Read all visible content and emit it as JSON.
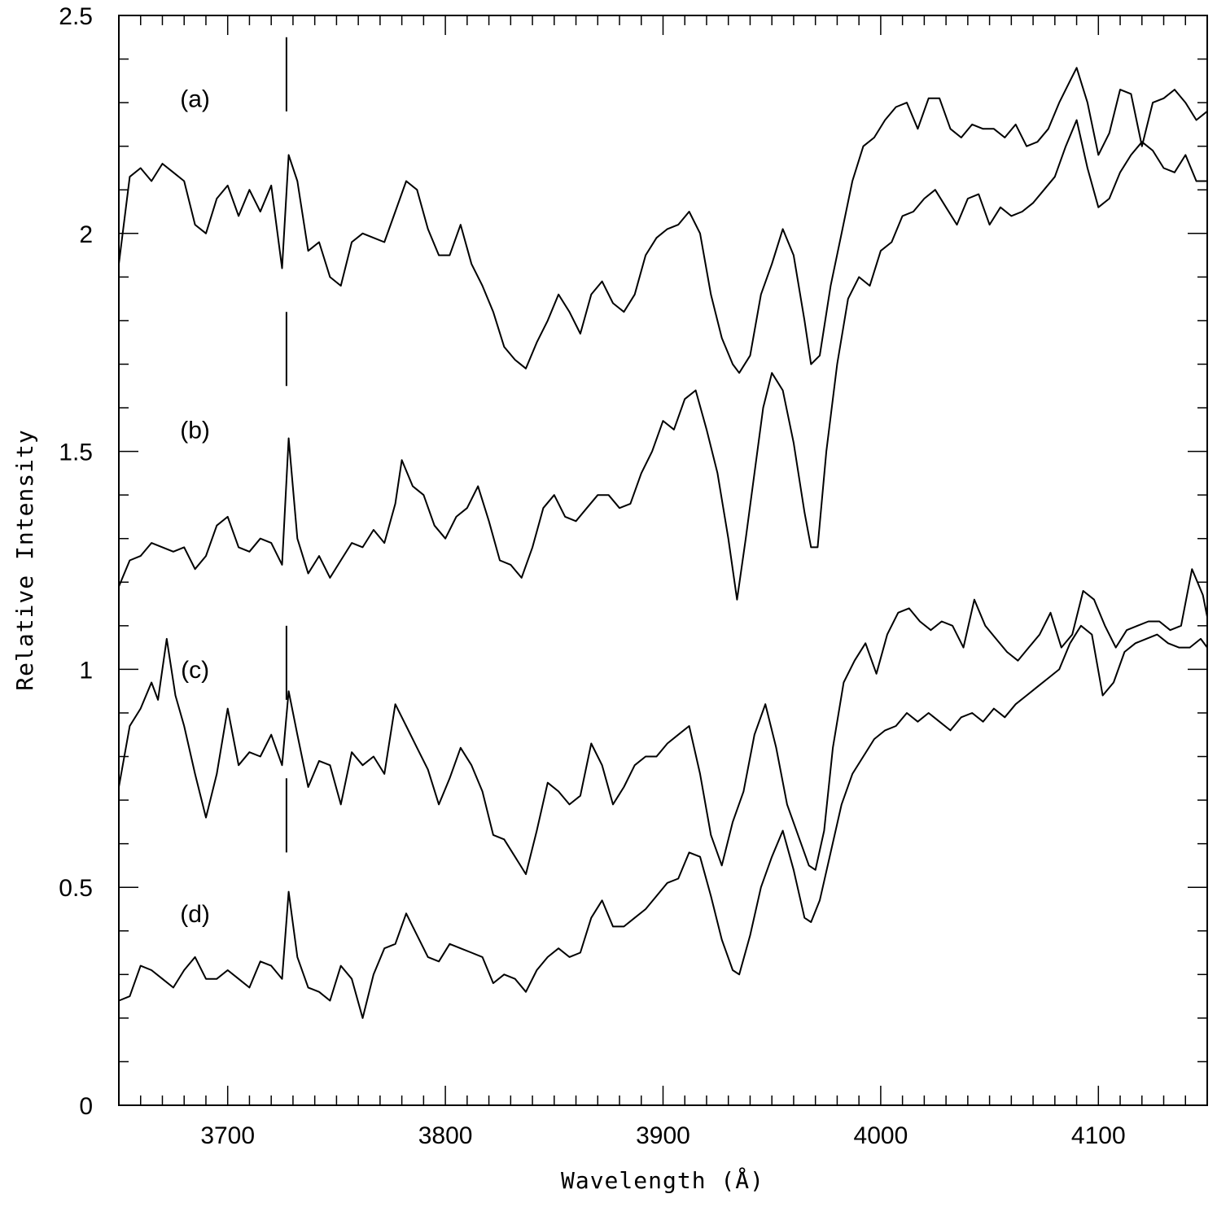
{
  "chart_data": {
    "type": "line",
    "xlabel": "Wavelength (Å)",
    "ylabel": "Relative Intensity",
    "xlim": [
      3650,
      4150
    ],
    "ylim": [
      0,
      2.5
    ],
    "x_ticks": [
      3700,
      3800,
      3900,
      4000,
      4100
    ],
    "x_tick_labels": [
      "3700",
      "3800",
      "3900",
      "4000",
      "4100"
    ],
    "y_ticks": [
      0,
      0.5,
      1,
      1.5,
      2,
      2.5
    ],
    "y_tick_labels": [
      "0",
      "0.5",
      "1",
      "1.5",
      "2",
      "2.5"
    ],
    "x_minor_step": 10,
    "y_minor_step": 0.1,
    "grid": false,
    "color": "#000000",
    "panel_labels": [
      {
        "text": "(a)",
        "x": 3685,
        "y": 2.29
      },
      {
        "text": "(b)",
        "x": 3685,
        "y": 1.53
      },
      {
        "text": "(c)",
        "x": 3685,
        "y": 0.98
      },
      {
        "text": "(d)",
        "x": 3685,
        "y": 0.42
      }
    ],
    "line_markers": [
      {
        "x": 3727,
        "y0": 2.28,
        "y1": 2.45
      },
      {
        "x": 3727,
        "y0": 1.65,
        "y1": 1.82
      },
      {
        "x": 3727,
        "y0": 0.93,
        "y1": 1.1
      },
      {
        "x": 3727,
        "y0": 0.58,
        "y1": 0.75
      }
    ],
    "series": [
      {
        "x": [
          3650,
          3655,
          3660,
          3665,
          3670,
          3675,
          3680,
          3685,
          3690,
          3695,
          3700,
          3705,
          3710,
          3715,
          3720,
          3725,
          3728,
          3732,
          3737,
          3742,
          3747,
          3752,
          3757,
          3762,
          3767,
          3772,
          3777,
          3782,
          3787,
          3792,
          3797,
          3802,
          3807,
          3812,
          3817,
          3822,
          3827,
          3832,
          3837,
          3842,
          3847,
          3852,
          3857,
          3862,
          3867,
          3872,
          3877,
          3882,
          3887,
          3892,
          3897,
          3902,
          3907,
          3912,
          3917,
          3922,
          3927,
          3932,
          3935,
          3940,
          3945,
          3950,
          3955,
          3960,
          3965,
          3968,
          3972,
          3977,
          3982,
          3987,
          3992,
          3997,
          4002,
          4007,
          4012,
          4017,
          4022,
          4027,
          4032,
          4037,
          4042,
          4047,
          4052,
          4057,
          4062,
          4067,
          4072,
          4077,
          4082,
          4087,
          4090,
          4095,
          4100,
          4105,
          4110,
          4115,
          4120,
          4125,
          4130,
          4135,
          4140,
          4145,
          4150
        ],
        "y": [
          1.93,
          2.13,
          2.15,
          2.12,
          2.16,
          2.14,
          2.12,
          2.02,
          2.0,
          2.08,
          2.11,
          2.04,
          2.1,
          2.05,
          2.11,
          1.92,
          2.18,
          2.12,
          1.96,
          1.98,
          1.9,
          1.88,
          1.98,
          2.0,
          1.99,
          1.98,
          2.05,
          2.12,
          2.1,
          2.01,
          1.95,
          1.95,
          2.02,
          1.93,
          1.88,
          1.82,
          1.74,
          1.71,
          1.69,
          1.75,
          1.8,
          1.86,
          1.82,
          1.77,
          1.86,
          1.89,
          1.84,
          1.82,
          1.86,
          1.95,
          1.99,
          2.01,
          2.02,
          2.05,
          2.0,
          1.86,
          1.76,
          1.7,
          1.68,
          1.72,
          1.86,
          1.93,
          2.01,
          1.95,
          1.8,
          1.7,
          1.72,
          1.88,
          2.0,
          2.12,
          2.2,
          2.22,
          2.26,
          2.29,
          2.3,
          2.24,
          2.31,
          2.31,
          2.24,
          2.22,
          2.25,
          2.24,
          2.24,
          2.22,
          2.25,
          2.2,
          2.21,
          2.24,
          2.3,
          2.35,
          2.38,
          2.3,
          2.18,
          2.23,
          2.33,
          2.32,
          2.2,
          2.3,
          2.31,
          2.33,
          2.3,
          2.26,
          2.28
        ]
      },
      {
        "x": [
          3650,
          3655,
          3660,
          3665,
          3670,
          3675,
          3680,
          3685,
          3690,
          3695,
          3700,
          3705,
          3710,
          3715,
          3720,
          3725,
          3728,
          3732,
          3737,
          3742,
          3747,
          3752,
          3757,
          3762,
          3767,
          3772,
          3777,
          3780,
          3785,
          3790,
          3795,
          3800,
          3805,
          3810,
          3815,
          3820,
          3825,
          3830,
          3835,
          3840,
          3845,
          3850,
          3855,
          3860,
          3865,
          3870,
          3875,
          3880,
          3885,
          3890,
          3895,
          3900,
          3905,
          3910,
          3915,
          3920,
          3925,
          3930,
          3934,
          3938,
          3942,
          3946,
          3950,
          3955,
          3960,
          3965,
          3968,
          3971,
          3975,
          3980,
          3985,
          3990,
          3995,
          4000,
          4005,
          4010,
          4015,
          4020,
          4025,
          4030,
          4035,
          4040,
          4045,
          4050,
          4055,
          4060,
          4065,
          4070,
          4075,
          4080,
          4085,
          4090,
          4095,
          4100,
          4105,
          4110,
          4115,
          4120,
          4125,
          4130,
          4135,
          4140,
          4145,
          4150
        ],
        "y": [
          1.19,
          1.25,
          1.26,
          1.29,
          1.28,
          1.27,
          1.28,
          1.23,
          1.26,
          1.33,
          1.35,
          1.28,
          1.27,
          1.3,
          1.29,
          1.24,
          1.53,
          1.3,
          1.22,
          1.26,
          1.21,
          1.25,
          1.29,
          1.28,
          1.32,
          1.29,
          1.38,
          1.48,
          1.42,
          1.4,
          1.33,
          1.3,
          1.35,
          1.37,
          1.42,
          1.34,
          1.25,
          1.24,
          1.21,
          1.28,
          1.37,
          1.4,
          1.35,
          1.34,
          1.37,
          1.4,
          1.4,
          1.37,
          1.38,
          1.45,
          1.5,
          1.57,
          1.55,
          1.62,
          1.64,
          1.55,
          1.45,
          1.3,
          1.16,
          1.3,
          1.45,
          1.6,
          1.68,
          1.64,
          1.52,
          1.36,
          1.28,
          1.28,
          1.5,
          1.7,
          1.85,
          1.9,
          1.88,
          1.96,
          1.98,
          2.04,
          2.05,
          2.08,
          2.1,
          2.06,
          2.02,
          2.08,
          2.09,
          2.02,
          2.06,
          2.04,
          2.05,
          2.07,
          2.1,
          2.13,
          2.2,
          2.26,
          2.15,
          2.06,
          2.08,
          2.14,
          2.18,
          2.21,
          2.19,
          2.15,
          2.14,
          2.18,
          2.12,
          2.12
        ]
      },
      {
        "x": [
          3650,
          3655,
          3660,
          3665,
          3668,
          3672,
          3676,
          3680,
          3685,
          3690,
          3695,
          3700,
          3705,
          3710,
          3715,
          3720,
          3725,
          3728,
          3732,
          3737,
          3742,
          3747,
          3752,
          3757,
          3762,
          3767,
          3772,
          3777,
          3782,
          3787,
          3792,
          3797,
          3802,
          3807,
          3812,
          3817,
          3822,
          3827,
          3832,
          3837,
          3842,
          3847,
          3852,
          3857,
          3862,
          3867,
          3872,
          3877,
          3882,
          3887,
          3892,
          3897,
          3902,
          3907,
          3912,
          3917,
          3922,
          3927,
          3932,
          3937,
          3942,
          3947,
          3952,
          3957,
          3962,
          3967,
          3970,
          3974,
          3978,
          3983,
          3988,
          3993,
          3998,
          4003,
          4008,
          4013,
          4018,
          4023,
          4028,
          4033,
          4038,
          4043,
          4048,
          4053,
          4058,
          4063,
          4068,
          4073,
          4078,
          4083,
          4088,
          4093,
          4098,
          4103,
          4108,
          4113,
          4118,
          4123,
          4128,
          4133,
          4138,
          4143,
          4148,
          4150
        ],
        "y": [
          0.73,
          0.87,
          0.91,
          0.97,
          0.93,
          1.07,
          0.94,
          0.87,
          0.76,
          0.66,
          0.76,
          0.91,
          0.78,
          0.81,
          0.8,
          0.85,
          0.78,
          0.95,
          0.85,
          0.73,
          0.79,
          0.78,
          0.69,
          0.81,
          0.78,
          0.8,
          0.76,
          0.92,
          0.87,
          0.82,
          0.77,
          0.69,
          0.75,
          0.82,
          0.78,
          0.72,
          0.62,
          0.61,
          0.57,
          0.53,
          0.63,
          0.74,
          0.72,
          0.69,
          0.71,
          0.83,
          0.78,
          0.69,
          0.73,
          0.78,
          0.8,
          0.8,
          0.83,
          0.85,
          0.87,
          0.76,
          0.62,
          0.55,
          0.65,
          0.72,
          0.85,
          0.92,
          0.82,
          0.69,
          0.62,
          0.55,
          0.54,
          0.63,
          0.82,
          0.97,
          1.02,
          1.06,
          0.99,
          1.08,
          1.13,
          1.14,
          1.11,
          1.09,
          1.11,
          1.1,
          1.05,
          1.16,
          1.1,
          1.07,
          1.04,
          1.02,
          1.05,
          1.08,
          1.13,
          1.05,
          1.08,
          1.18,
          1.16,
          1.1,
          1.05,
          1.09,
          1.1,
          1.11,
          1.11,
          1.09,
          1.1,
          1.23,
          1.17,
          1.12
        ]
      },
      {
        "x": [
          3650,
          3655,
          3660,
          3665,
          3670,
          3675,
          3680,
          3685,
          3690,
          3695,
          3700,
          3705,
          3710,
          3715,
          3720,
          3725,
          3728,
          3732,
          3737,
          3742,
          3747,
          3752,
          3757,
          3762,
          3767,
          3772,
          3777,
          3782,
          3787,
          3792,
          3797,
          3802,
          3807,
          3812,
          3817,
          3822,
          3827,
          3832,
          3837,
          3842,
          3847,
          3852,
          3857,
          3862,
          3867,
          3872,
          3877,
          3882,
          3887,
          3892,
          3897,
          3902,
          3907,
          3912,
          3917,
          3922,
          3927,
          3932,
          3935,
          3940,
          3945,
          3950,
          3955,
          3960,
          3965,
          3968,
          3972,
          3977,
          3982,
          3987,
          3992,
          3997,
          4002,
          4007,
          4012,
          4017,
          4022,
          4027,
          4032,
          4037,
          4042,
          4047,
          4052,
          4057,
          4062,
          4067,
          4072,
          4077,
          4082,
          4087,
          4092,
          4097,
          4102,
          4107,
          4112,
          4117,
          4122,
          4127,
          4132,
          4137,
          4142,
          4147,
          4150
        ],
        "y": [
          0.24,
          0.25,
          0.32,
          0.31,
          0.29,
          0.27,
          0.31,
          0.34,
          0.29,
          0.29,
          0.31,
          0.29,
          0.27,
          0.33,
          0.32,
          0.29,
          0.49,
          0.34,
          0.27,
          0.26,
          0.24,
          0.32,
          0.29,
          0.2,
          0.3,
          0.36,
          0.37,
          0.44,
          0.39,
          0.34,
          0.33,
          0.37,
          0.36,
          0.35,
          0.34,
          0.28,
          0.3,
          0.29,
          0.26,
          0.31,
          0.34,
          0.36,
          0.34,
          0.35,
          0.43,
          0.47,
          0.41,
          0.41,
          0.43,
          0.45,
          0.48,
          0.51,
          0.52,
          0.58,
          0.57,
          0.48,
          0.38,
          0.31,
          0.3,
          0.39,
          0.5,
          0.57,
          0.63,
          0.54,
          0.43,
          0.42,
          0.47,
          0.58,
          0.69,
          0.76,
          0.8,
          0.84,
          0.86,
          0.87,
          0.9,
          0.88,
          0.9,
          0.88,
          0.86,
          0.89,
          0.9,
          0.88,
          0.91,
          0.89,
          0.92,
          0.94,
          0.96,
          0.98,
          1.0,
          1.06,
          1.1,
          1.08,
          0.94,
          0.97,
          1.04,
          1.06,
          1.07,
          1.08,
          1.06,
          1.05,
          1.05,
          1.07,
          1.05
        ]
      }
    ]
  }
}
